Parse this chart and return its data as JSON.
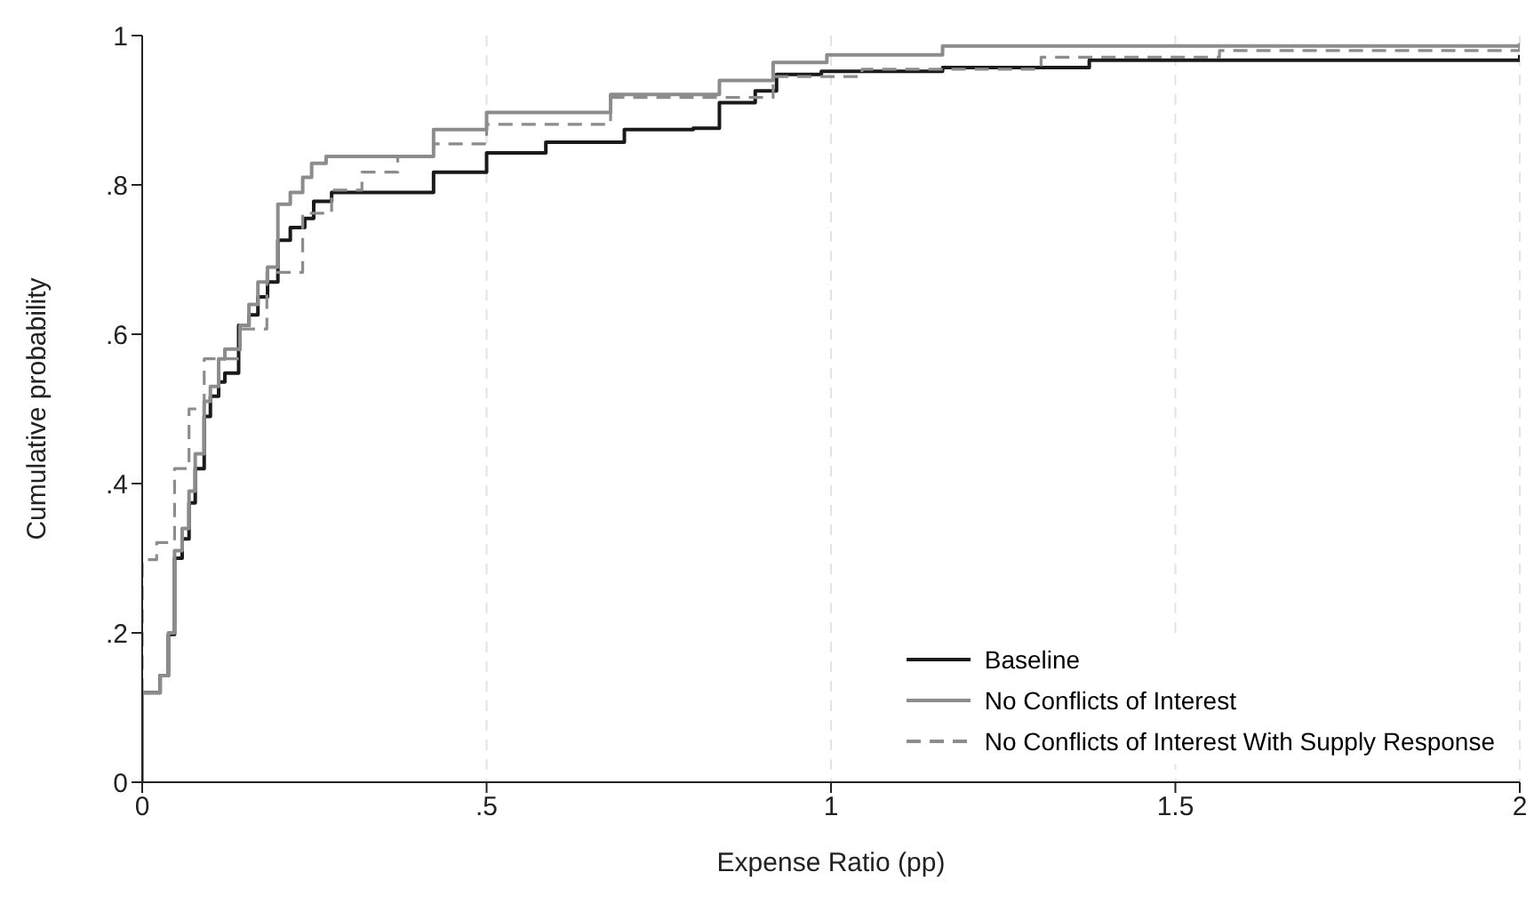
{
  "chart_data": {
    "type": "step",
    "xlabel": "Expense Ratio (pp)",
    "ylabel": "Cumulative probability",
    "xlim": [
      0,
      2
    ],
    "xticks": [
      0,
      {
        "value": 0.5,
        "label": ".5"
      },
      1,
      1.5,
      2
    ],
    "ylim": [
      0,
      1
    ],
    "yticks": [
      0,
      {
        "value": 0.2,
        "label": ".2"
      },
      {
        "value": 0.4,
        "label": ".4"
      },
      {
        "value": 0.6,
        "label": ".6"
      },
      {
        "value": 0.8,
        "label": ".8"
      },
      1
    ],
    "grid": "x",
    "legend": "bottom right",
    "series": [
      {
        "name": "Baseline",
        "color": "#1a1a1a",
        "line_style": "solid",
        "x": [
          0,
          0,
          0.026,
          0.038,
          0.047,
          0.058,
          0.068,
          0.077,
          0.09,
          0.099,
          0.111,
          0.12,
          0.14,
          0.155,
          0.168,
          0.182,
          0.197,
          0.215,
          0.236,
          0.249,
          0.275,
          0.423,
          0.5,
          0.586,
          0.7,
          0.8,
          0.838,
          0.89,
          0.921,
          0.986,
          1.162,
          1.375,
          2
        ],
        "values": [
          0,
          0.12,
          0.143,
          0.198,
          0.3,
          0.326,
          0.374,
          0.42,
          0.49,
          0.517,
          0.536,
          0.548,
          0.612,
          0.626,
          0.65,
          0.67,
          0.726,
          0.743,
          0.755,
          0.778,
          0.79,
          0.817,
          0.843,
          0.857,
          0.874,
          0.876,
          0.91,
          0.926,
          0.948,
          0.952,
          0.957,
          0.967,
          0.974
        ]
      },
      {
        "name": "No Conflicts of Interest",
        "color": "#8c8c8c",
        "line_style": "solid",
        "x": [
          0,
          0,
          0.026,
          0.038,
          0.047,
          0.058,
          0.068,
          0.077,
          0.09,
          0.099,
          0.111,
          0.12,
          0.142,
          0.155,
          0.168,
          0.182,
          0.197,
          0.215,
          0.233,
          0.246,
          0.267,
          0.423,
          0.5,
          0.68,
          0.838,
          0.916,
          0.994,
          1.162,
          2
        ],
        "values": [
          0,
          0.12,
          0.143,
          0.2,
          0.31,
          0.34,
          0.39,
          0.44,
          0.51,
          0.53,
          0.567,
          0.58,
          0.612,
          0.64,
          0.67,
          0.69,
          0.774,
          0.79,
          0.81,
          0.829,
          0.838,
          0.874,
          0.897,
          0.921,
          0.94,
          0.964,
          0.974,
          0.986,
          0.99
        ]
      },
      {
        "name": "No Conflicts of Interest With Supply Response",
        "color": "#8c8c8c",
        "line_style": "dashed",
        "x": [
          0,
          0,
          0.021,
          0.047,
          0.068,
          0.09,
          0.142,
          0.181,
          0.233,
          0.275,
          0.319,
          0.371,
          0.423,
          0.5,
          0.68,
          0.916,
          1.045,
          1.305,
          1.564,
          2
        ],
        "values": [
          0.12,
          0.298,
          0.321,
          0.42,
          0.5,
          0.567,
          0.607,
          0.683,
          0.762,
          0.793,
          0.817,
          0.838,
          0.855,
          0.881,
          0.917,
          0.945,
          0.955,
          0.971,
          0.98,
          0.988
        ]
      }
    ]
  }
}
